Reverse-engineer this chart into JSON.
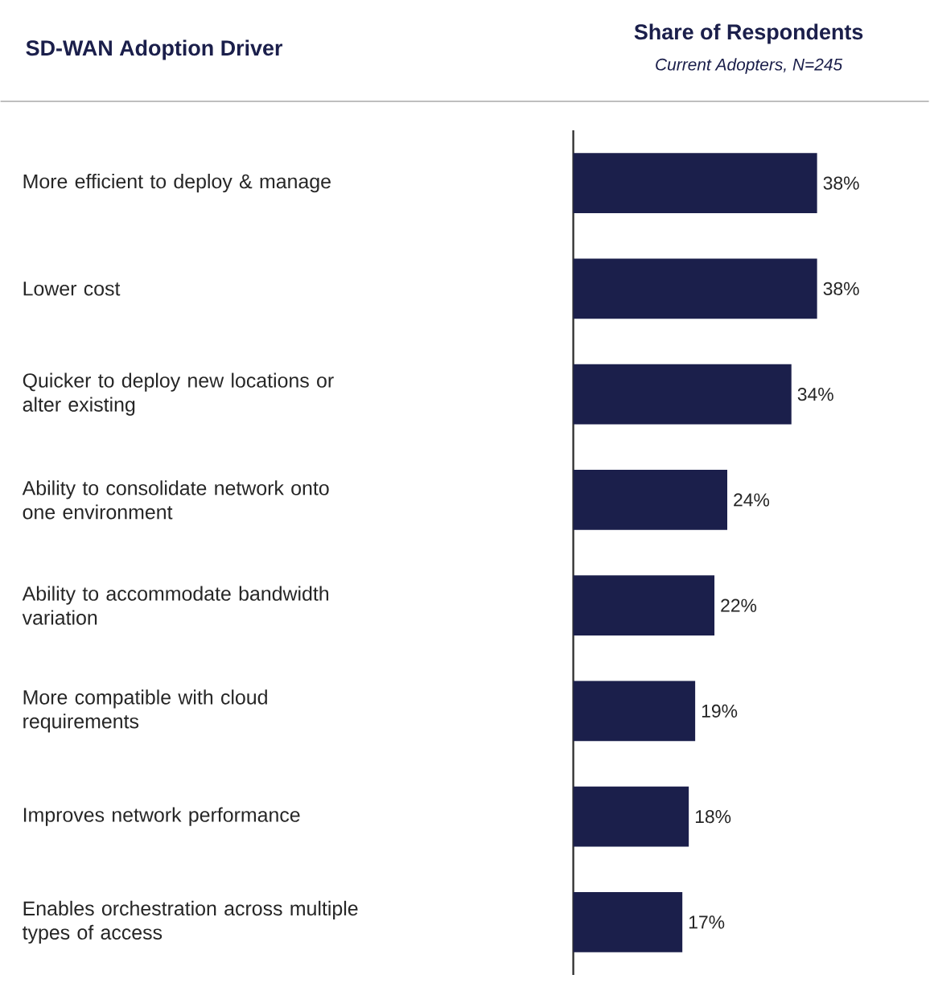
{
  "chart_data": {
    "type": "bar",
    "orientation": "horizontal",
    "title": "Share of Respondents",
    "subtitle": "Current Adopters, N=245",
    "ylabel": "SD-WAN Adoption Driver",
    "categories": [
      "More efficient to deploy & manage",
      "Lower cost",
      "Quicker to deploy new locations or alter existing",
      "Ability to consolidate network onto one environment",
      "Ability to accommodate bandwidth variation",
      "More compatible with cloud requirements",
      "Improves network performance",
      "Enables orchestration across multiple types of access"
    ],
    "values": [
      38,
      38,
      34,
      24,
      22,
      19,
      18,
      17
    ],
    "value_labels": [
      "38%",
      "38%",
      "34%",
      "24%",
      "22%",
      "19%",
      "18%",
      "17%"
    ],
    "color": "#1b1f4b"
  }
}
